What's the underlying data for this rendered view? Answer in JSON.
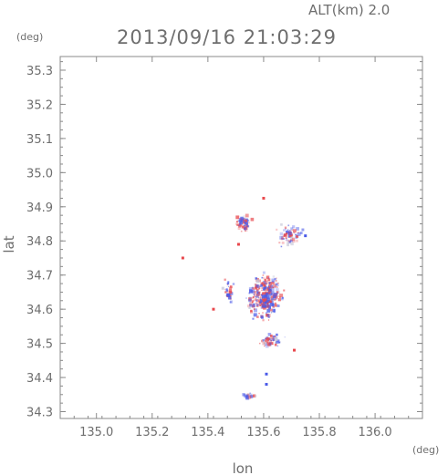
{
  "header": {
    "altitude_label": "ALT(km) 2.0",
    "timestamp": "2013/09/16 21:03:29"
  },
  "chart_data": {
    "type": "scatter",
    "title": "2013/09/16 21:03:29",
    "xlabel": "lon",
    "ylabel": "lat",
    "x_unit": "(deg)",
    "y_unit": "(deg)",
    "xlim": [
      134.87,
      136.17
    ],
    "ylim": [
      34.28,
      35.34
    ],
    "x_ticks": [
      135.0,
      135.2,
      135.4,
      135.6,
      135.8,
      136.0
    ],
    "y_ticks": [
      34.3,
      34.4,
      34.5,
      34.6,
      34.7,
      34.8,
      34.9,
      35.0,
      35.1,
      35.2,
      35.3
    ],
    "x_tick_labels": [
      "135.0",
      "135.2",
      "135.4",
      "135.6",
      "135.8",
      "136.0"
    ],
    "y_tick_labels": [
      "34.3",
      "34.4",
      "34.5",
      "34.6",
      "34.7",
      "34.8",
      "34.9",
      "35.0",
      "35.1",
      "35.2",
      "35.3"
    ],
    "grid": false,
    "colors": {
      "positive": "#e8474c",
      "negative": "#4a5ae8",
      "axis": "#8a8a8a"
    },
    "series": [
      {
        "name": "",
        "clusters": [
          {
            "lon": 135.52,
            "lat": 34.855,
            "spread_lon": 0.04,
            "spread_lat": 0.03,
            "count": 55
          },
          {
            "lon": 135.69,
            "lat": 34.82,
            "spread_lon": 0.06,
            "spread_lat": 0.04,
            "count": 70
          },
          {
            "lon": 135.6,
            "lat": 34.64,
            "spread_lon": 0.08,
            "spread_lat": 0.09,
            "count": 320
          },
          {
            "lon": 135.62,
            "lat": 34.51,
            "spread_lon": 0.06,
            "spread_lat": 0.03,
            "count": 60
          },
          {
            "lon": 135.55,
            "lat": 34.35,
            "spread_lon": 0.04,
            "spread_lat": 0.01,
            "count": 18
          },
          {
            "lon": 135.47,
            "lat": 34.66,
            "spread_lon": 0.03,
            "spread_lat": 0.04,
            "count": 30
          }
        ],
        "points": [
          {
            "lon": 135.31,
            "lat": 34.75,
            "sign": 1
          },
          {
            "lon": 135.6,
            "lat": 34.925,
            "sign": 1
          },
          {
            "lon": 135.61,
            "lat": 34.38,
            "sign": -1
          },
          {
            "lon": 135.61,
            "lat": 34.41,
            "sign": -1
          },
          {
            "lon": 135.42,
            "lat": 34.6,
            "sign": 1
          },
          {
            "lon": 135.71,
            "lat": 34.48,
            "sign": 1
          },
          {
            "lon": 135.75,
            "lat": 34.815,
            "sign": -1
          },
          {
            "lon": 135.51,
            "lat": 34.79,
            "sign": 1
          }
        ]
      }
    ]
  }
}
